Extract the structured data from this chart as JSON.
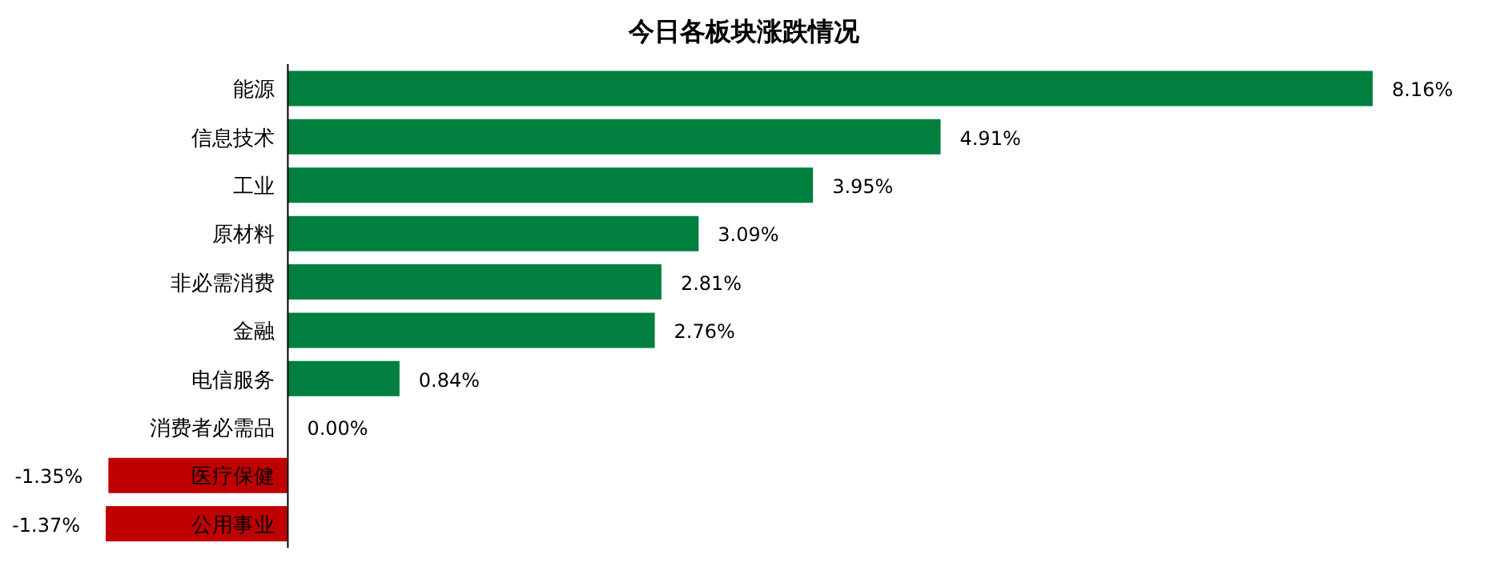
{
  "chart_data": {
    "type": "bar",
    "orientation": "horizontal",
    "title": "今日各板块涨跌情况",
    "categories": [
      "能源",
      "信息技术",
      "工业",
      "原材料",
      "非必需消费",
      "金融",
      "电信服务",
      "消费者必需品",
      "医疗保健",
      "公用事业"
    ],
    "values": [
      8.16,
      4.91,
      3.95,
      3.09,
      2.81,
      2.76,
      0.84,
      0.0,
      -1.35,
      -1.37
    ],
    "value_labels": [
      "8.16%",
      "4.91%",
      "3.95%",
      "3.09%",
      "2.81%",
      "2.76%",
      "0.84%",
      "0.00%",
      "-1.35%",
      "-1.37%"
    ],
    "colors": [
      "#007f3e",
      "#007f3e",
      "#007f3e",
      "#007f3e",
      "#007f3e",
      "#007f3e",
      "#007f3e",
      "#007f3e",
      "#c00000",
      "#c00000"
    ]
  }
}
